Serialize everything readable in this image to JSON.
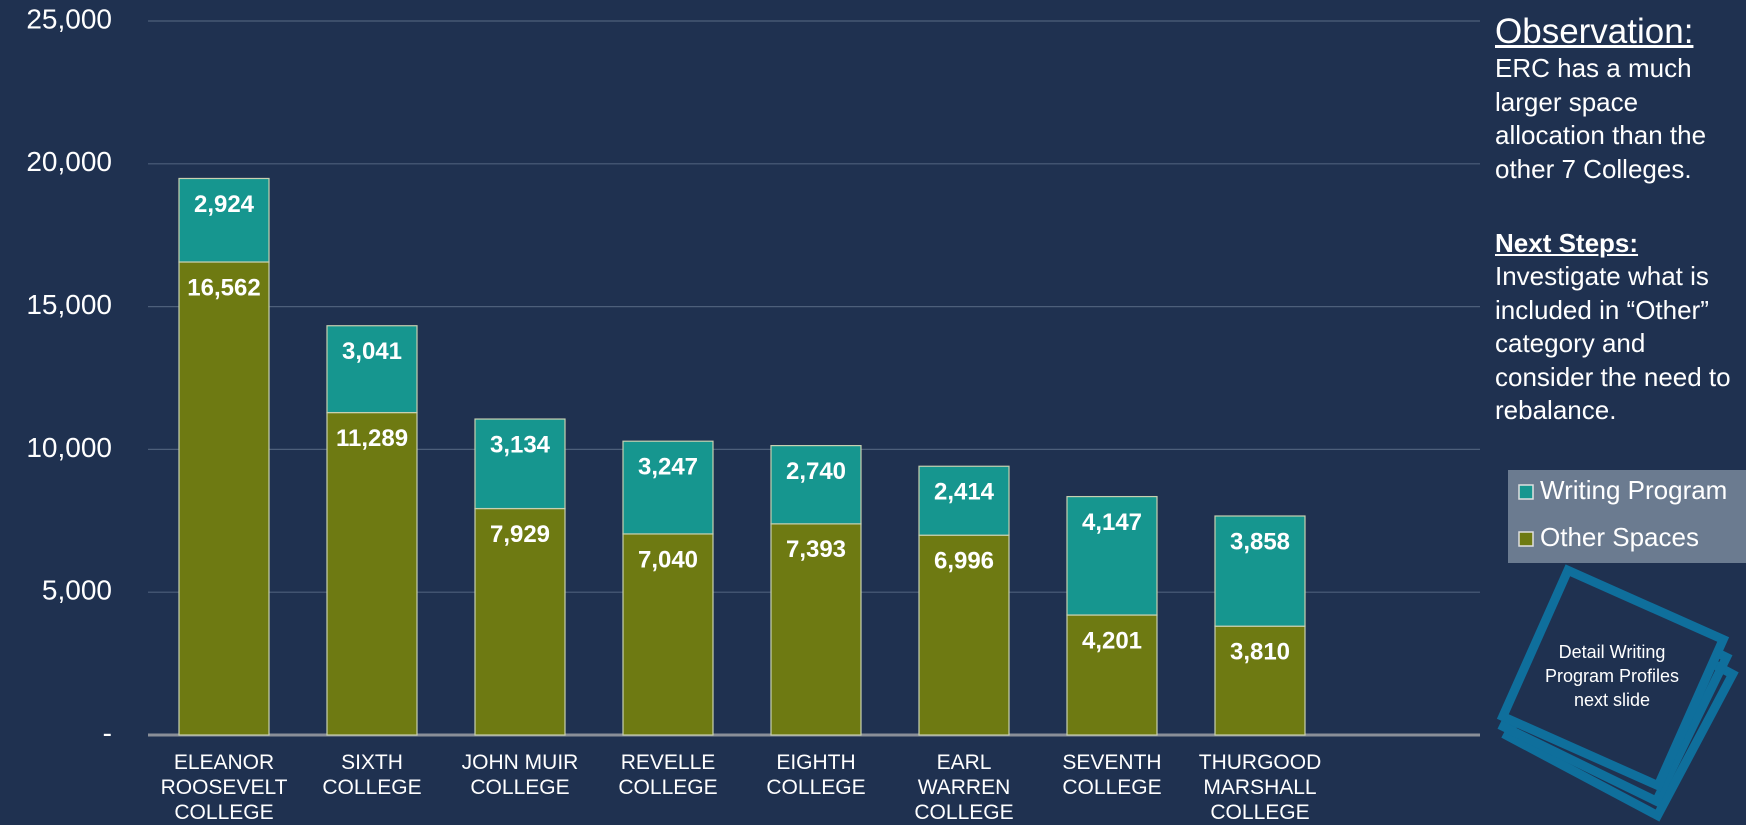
{
  "chart_data": {
    "type": "stacked_bar",
    "categories": [
      [
        "ELEANOR",
        "ROOSEVELT",
        "COLLEGE"
      ],
      [
        "SIXTH",
        "COLLEGE"
      ],
      [
        "JOHN MUIR",
        "COLLEGE"
      ],
      [
        "REVELLE",
        "COLLEGE"
      ],
      [
        "EIGHTH",
        "COLLEGE"
      ],
      [
        "EARL",
        "WARREN",
        "COLLEGE"
      ],
      [
        "SEVENTH",
        "COLLEGE"
      ],
      [
        "THURGOOD",
        "MARSHALL",
        "COLLEGE"
      ]
    ],
    "series": [
      {
        "name": "Other Spaces",
        "color": "#6e7a12",
        "values": [
          16562,
          11289,
          7929,
          7040,
          7393,
          6996,
          4201,
          3810
        ],
        "value_labels": [
          "16,562",
          "11,289",
          "7,929",
          "7,040",
          "7,393",
          "6,996",
          "4,201",
          "3,810"
        ]
      },
      {
        "name": "Writing Program",
        "color": "#16968f",
        "values": [
          2924,
          3041,
          3134,
          3247,
          2740,
          2414,
          4147,
          3858
        ],
        "value_labels": [
          "2,924",
          "3,041",
          "3,134",
          "3,247",
          "2,740",
          "2,414",
          "4,147",
          "3,858"
        ]
      }
    ],
    "ylim": [
      0,
      25000
    ],
    "yticks": [
      {
        "value": 0,
        "label": "-"
      },
      {
        "value": 5000,
        "label": "5,000"
      },
      {
        "value": 10000,
        "label": "10,000"
      },
      {
        "value": 15000,
        "label": "15,000"
      },
      {
        "value": 20000,
        "label": "20,000"
      },
      {
        "value": 25000,
        "label": "25,000"
      }
    ],
    "grid": true
  },
  "observation": {
    "heading": "Observation:",
    "lines": [
      "ERC has a much",
      "larger space",
      "allocation than the",
      "other 7 Colleges."
    ]
  },
  "next_steps": {
    "heading": "Next Steps:",
    "lines": [
      "Investigate what is",
      "included in “Other”",
      "category and",
      "consider the need to",
      "rebalance."
    ]
  },
  "callout": {
    "lines": [
      "Detail Writing",
      "Program Profiles",
      "next slide"
    ]
  }
}
